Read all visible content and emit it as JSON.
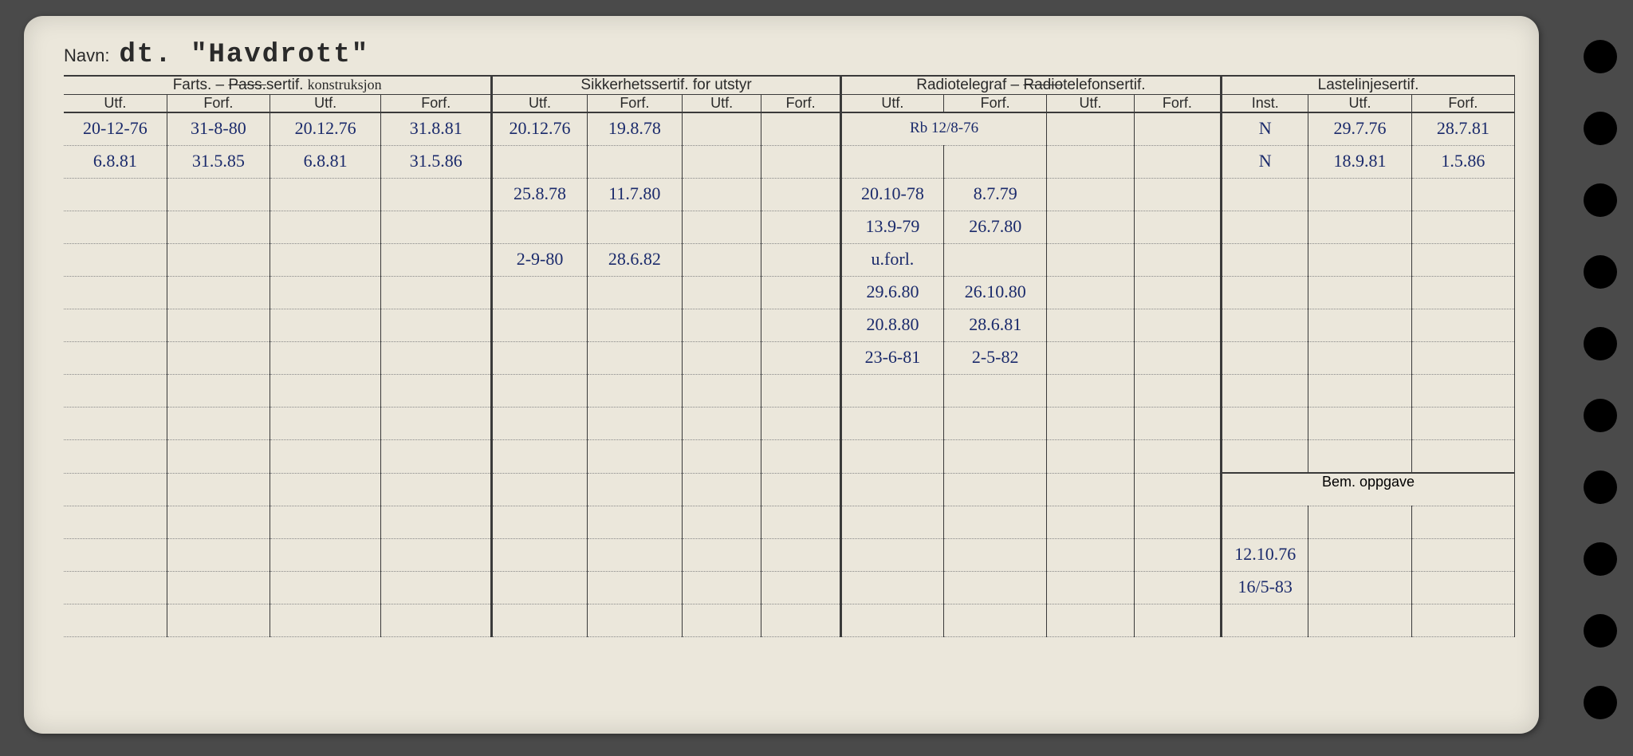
{
  "navn_label": "Navn:",
  "navn_value": "dt. \"Havdrott\"",
  "groups": {
    "farts": {
      "label_pre": "Farts. – ",
      "label_strike": "Pass.",
      "label_post": "sertif.",
      "annot": "konstruksjon"
    },
    "sikkerhet": "Sikkerhetssertif. for utstyr",
    "radio": {
      "pre": "Radiotelegraf – ",
      "strike": "Radio",
      "post": "telefonsertif."
    },
    "lastelinje": "Lastelinjesertif.",
    "bem": "Bem. oppgave"
  },
  "sub": {
    "utf": "Utf.",
    "forf": "Forf.",
    "inst": "Inst."
  },
  "rows": [
    {
      "c1": "20-12-76",
      "c2": "31-8-80",
      "c3": "20.12.76",
      "c4": "31.8.81",
      "c5": "20.12.76",
      "c6": "19.8.78",
      "c7": "",
      "c8": "",
      "c9": "Rb 12/8-76",
      "c10": "",
      "c11": "",
      "c12": "",
      "c13": "N",
      "c14": "29.7.76",
      "c15": "28.7.81"
    },
    {
      "c1": "6.8.81",
      "c2": "31.5.85",
      "c3": "6.8.81",
      "c4": "31.5.86",
      "c5": "",
      "c6": "",
      "c7": "",
      "c8": "",
      "c9": "",
      "c10": "",
      "c11": "",
      "c12": "",
      "c13": "N",
      "c14": "18.9.81",
      "c15": "1.5.86"
    },
    {
      "c1": "",
      "c2": "",
      "c3": "",
      "c4": "",
      "c5": "25.8.78",
      "c6": "11.7.80",
      "c7": "",
      "c8": "",
      "c9": "20.10-78",
      "c10": "8.7.79",
      "c11": "",
      "c12": "",
      "c13": "",
      "c14": "",
      "c15": ""
    },
    {
      "c1": "",
      "c2": "",
      "c3": "",
      "c4": "",
      "c5": "",
      "c6": "",
      "c7": "",
      "c8": "",
      "c9": "13.9-79",
      "c10": "26.7.80",
      "c11": "",
      "c12": "",
      "c13": "",
      "c14": "",
      "c15": ""
    },
    {
      "c1": "",
      "c2": "",
      "c3": "",
      "c4": "",
      "c5": "2-9-80",
      "c6": "28.6.82",
      "c7": "",
      "c8": "",
      "c9": "u.forl.",
      "c10": "",
      "c11": "",
      "c12": "",
      "c13": "",
      "c14": "",
      "c15": ""
    },
    {
      "c1": "",
      "c2": "",
      "c3": "",
      "c4": "",
      "c5": "",
      "c6": "",
      "c7": "",
      "c8": "",
      "c9": "29.6.80",
      "c10": "26.10.80",
      "c11": "",
      "c12": "",
      "c13": "",
      "c14": "",
      "c15": ""
    },
    {
      "c1": "",
      "c2": "",
      "c3": "",
      "c4": "",
      "c5": "",
      "c6": "",
      "c7": "",
      "c8": "",
      "c9": "20.8.80",
      "c10": "28.6.81",
      "c11": "",
      "c12": "",
      "c13": "",
      "c14": "",
      "c15": ""
    },
    {
      "c1": "",
      "c2": "",
      "c3": "",
      "c4": "",
      "c5": "",
      "c6": "",
      "c7": "",
      "c8": "",
      "c9": "23-6-81",
      "c10": "2-5-82",
      "c11": "",
      "c12": "",
      "c13": "",
      "c14": "",
      "c15": ""
    },
    {
      "c1": "",
      "c2": "",
      "c3": "",
      "c4": "",
      "c5": "",
      "c6": "",
      "c7": "",
      "c8": "",
      "c9": "",
      "c10": "",
      "c11": "",
      "c12": "",
      "c13": "",
      "c14": "",
      "c15": ""
    },
    {
      "c1": "",
      "c2": "",
      "c3": "",
      "c4": "",
      "c5": "",
      "c6": "",
      "c7": "",
      "c8": "",
      "c9": "",
      "c10": "",
      "c11": "",
      "c12": "",
      "c13": "",
      "c14": "",
      "c15": ""
    },
    {
      "c1": "",
      "c2": "",
      "c3": "",
      "c4": "",
      "c5": "",
      "c6": "",
      "c7": "",
      "c8": "",
      "c9": "",
      "c10": "",
      "c11": "",
      "c12": "",
      "c13": "",
      "c14": "",
      "c15": ""
    }
  ],
  "bem_rows": [
    "",
    "12.10.76",
    "16/5-83",
    "",
    ""
  ],
  "colors": {
    "paper": "#ebe7db",
    "ink": "#2a2a2a",
    "handwriting": "#1a2a6b",
    "background": "#4a4a4a"
  }
}
